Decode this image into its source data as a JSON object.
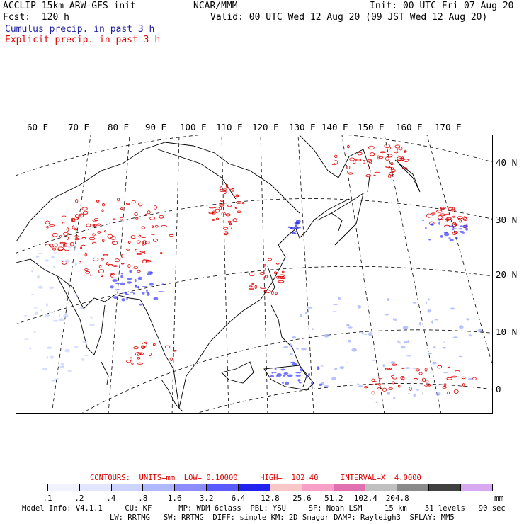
{
  "header": {
    "title": "ACCLIP 15km ARW-GFS init",
    "center": "NCAR/MMM",
    "init": "Init: 00 UTC Fri 07 Aug 20",
    "fcst": "Fcst:  120 h",
    "valid": "Valid: 00 UTC Wed 12 Aug 20 (09 JST Wed 12 Aug 20)",
    "cumulus": "Cumulus precip. in past 3 h",
    "explicit": "Explicit precip. in past 3 h"
  },
  "map": {
    "lon_labels": [
      "60 E",
      "70 E",
      "80 E",
      "90 E",
      "100 E",
      "110 E",
      "120 E",
      "130 E",
      "140 E",
      "150 E",
      "160 E",
      "170 E"
    ],
    "lat_labels": [
      "40 N",
      "30 N",
      "20 N",
      "10 N",
      "0"
    ]
  },
  "contours": {
    "text": "CONTOURS:  UNITS=mm  LOW= 0.10000     HIGH=  102.40     INTERVAL=X  4.0000"
  },
  "legend": {
    "colors": [
      "#ffffff",
      "#f2f2ff",
      "#e2e6ff",
      "#ccd4ff",
      "#b0b8ff",
      "#8c8cff",
      "#5a5aff",
      "#2222ee",
      "#f8c8c8",
      "#f8a0c8",
      "#e070b0",
      "#c0c0c0",
      "#8a8a8a",
      "#404040",
      "#d8a8f0"
    ],
    "ticks": [
      ".1",
      ".2",
      ".4",
      ".8",
      "1.6",
      "3.2",
      "6.4",
      "12.8",
      "25.6",
      "51.2",
      "102.4",
      "204.8"
    ],
    "units": "mm"
  },
  "footer": {
    "line1": "Model Info: V4.1.1     CU: KF      MP: WDM 6class  PBL: YSU     SF: Noah LSM     15 km    51 levels   90 sec",
    "line2": "LW: RRTMG   SW: RRTMG  DIFF: simple KM: 2D Smagor DAMP: Rayleigh3  SFLAY: MM5"
  }
}
